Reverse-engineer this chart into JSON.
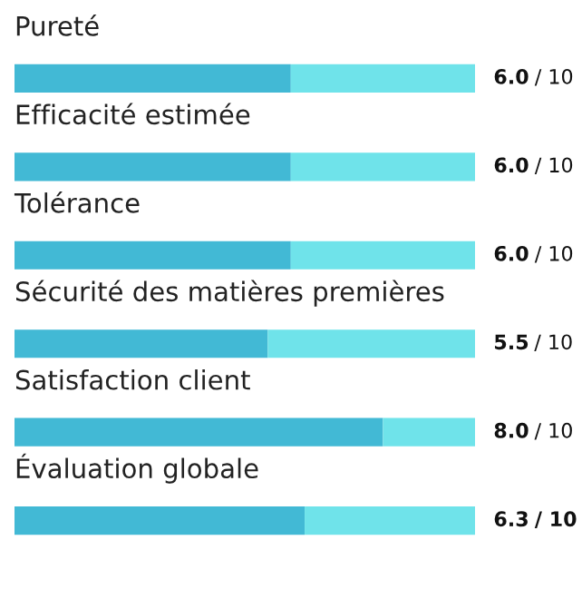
{
  "chart_data": {
    "type": "bar",
    "orientation": "horizontal",
    "stacked": true,
    "categories": [
      "Pureté",
      "Efficacité estimée",
      "Tolérance",
      "Sécurité des matières premières",
      "Satisfaction client",
      "Évaluation globale"
    ],
    "series": [
      {
        "color": "#42b9d5",
        "values": [
          6.0,
          6.0,
          6.0,
          5.5,
          8.0,
          6.3
        ],
        "value_labels": [
          "6.0",
          "6.0",
          "6.0",
          "5.5",
          "8.0",
          "6.3"
        ]
      },
      {
        "color": "#6fe3ea",
        "values": [
          4.0,
          4.0,
          4.0,
          4.5,
          2.0,
          3.7
        ]
      }
    ],
    "totals": [
      "/ 10",
      "/ 10",
      "/ 10",
      "/ 10",
      "/ 10",
      "/ 10"
    ],
    "tick_labels": false
  }
}
